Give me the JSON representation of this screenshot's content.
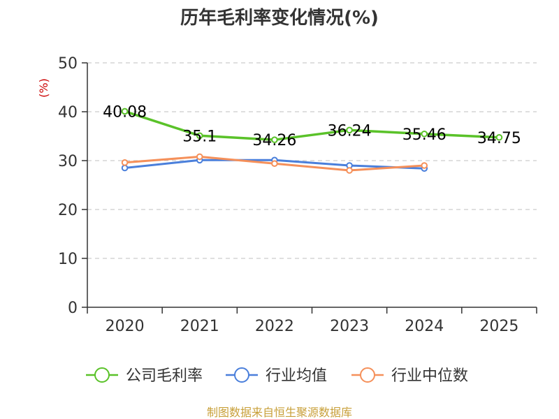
{
  "chart_data": {
    "type": "line",
    "title": "历年毛利率变化情况(%)",
    "ylabel": "(%)",
    "xlabel": "",
    "categories": [
      "2020",
      "2021",
      "2022",
      "2023",
      "2024",
      "2025"
    ],
    "ylim": [
      0,
      50
    ],
    "yticks": [
      0,
      10,
      20,
      30,
      40,
      50
    ],
    "grid": true,
    "legend_position": "bottom",
    "series": [
      {
        "name": "公司毛利率",
        "color": "#5ac229",
        "values": [
          40.08,
          35.1,
          34.26,
          36.24,
          35.46,
          34.75
        ],
        "labels": [
          "40.08",
          "35.1",
          "34.26",
          "36.24",
          "35.46",
          "34.75"
        ],
        "show_labels": true
      },
      {
        "name": "行业均值",
        "color": "#4a7fdb",
        "values": [
          28.5,
          30.1,
          30.1,
          29.0,
          28.4,
          null
        ],
        "show_labels": false
      },
      {
        "name": "行业中位数",
        "color": "#f5905a",
        "values": [
          29.6,
          30.8,
          29.4,
          28.0,
          29.0,
          null
        ],
        "show_labels": false
      }
    ],
    "source": "制图数据来自恒生聚源数据库"
  }
}
